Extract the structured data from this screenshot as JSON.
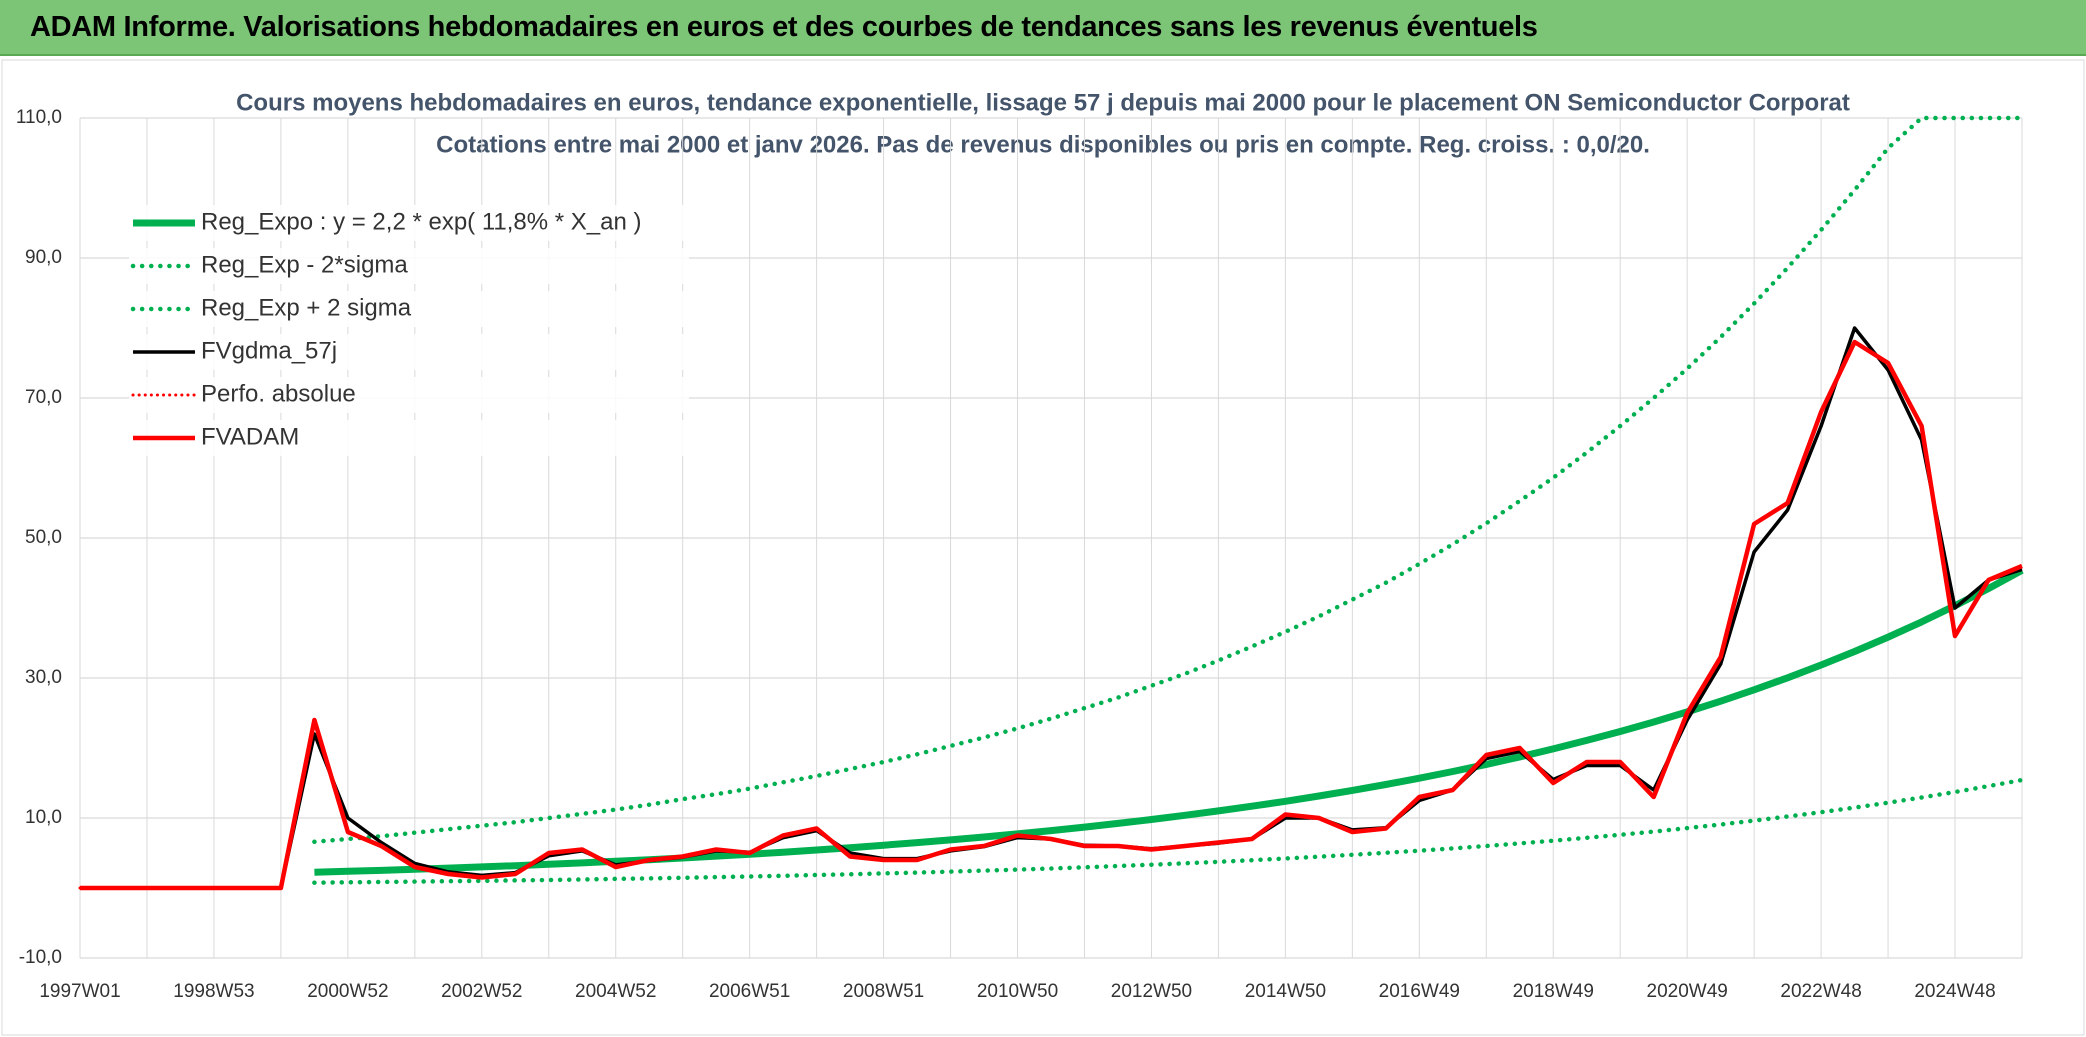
{
  "page_title": "ADAM Informe. Valorisations hebdomadaires en euros et des courbes de tendances sans les revenus éventuels",
  "chart_data": {
    "type": "line",
    "title": "Cours moyens hebdomadaires en euros, tendance exponentielle, lissage 57 j depuis mai 2000 pour le placement ON Semiconductor Corporat",
    "subtitle": "Cotations entre mai 2000 et janv 2026. Pas de revenus disponibles ou pris en compte. Reg. croiss. : 0,0/20.",
    "categories": [
      "1997W01",
      null,
      null,
      null,
      "1998W53",
      null,
      null,
      null,
      "2000W52",
      null,
      null,
      null,
      "2002W52",
      null,
      null,
      null,
      "2004W52",
      null,
      null,
      null,
      "2006W51",
      null,
      null,
      null,
      "2008W51",
      null,
      null,
      null,
      "2010W50",
      null,
      null,
      null,
      "2012W50",
      null,
      null,
      null,
      "2014W50",
      null,
      null,
      null,
      "2016W49",
      null,
      null,
      null,
      "2018W49",
      null,
      null,
      null,
      "2020W49",
      null,
      null,
      null,
      "2022W48",
      null,
      null,
      null,
      "2024W48",
      null,
      null
    ],
    "ylim": [
      -10,
      110
    ],
    "yticks": [
      {
        "value": -10,
        "label": "-10,0"
      },
      {
        "value": 10,
        "label": "10,0"
      },
      {
        "value": 30,
        "label": "30,0"
      },
      {
        "value": 50,
        "label": "50,0"
      },
      {
        "value": 70,
        "label": "70,0"
      },
      {
        "value": 90,
        "label": "90,0"
      },
      {
        "value": 110,
        "label": "110,0"
      }
    ],
    "grid": true,
    "legend": "upper left",
    "series": [
      {
        "name": "Reg_Expo : y = 2,2 * exp( 11,8% *  X_an )",
        "color": "#00b050",
        "style": "solid",
        "width": 7,
        "values": [
          null,
          null,
          null,
          null,
          null,
          null,
          null,
          2.24,
          2.38,
          2.52,
          2.67,
          2.84,
          3.01,
          3.19,
          3.38,
          3.59,
          3.81,
          4.04,
          4.29,
          4.55,
          4.82,
          5.12,
          5.43,
          5.76,
          6.11,
          6.48,
          6.87,
          7.29,
          7.73,
          8.2,
          8.7,
          9.23,
          9.79,
          10.38,
          11.01,
          11.68,
          12.39,
          13.15,
          13.95,
          14.79,
          15.69,
          16.65,
          17.66,
          18.73,
          19.87,
          21.08,
          22.36,
          23.72,
          25.16,
          26.69,
          28.31,
          30.03,
          31.86,
          33.79,
          35.84,
          38.02,
          40.33,
          42.79,
          45.39
        ]
      },
      {
        "name": "Reg_Exp - 2*sigma",
        "color": "#00b050",
        "style": "dotted",
        "width": 4.5,
        "values": [
          null,
          null,
          null,
          null,
          null,
          null,
          null,
          0.76,
          0.81,
          0.86,
          0.91,
          0.97,
          1.02,
          1.08,
          1.15,
          1.22,
          1.3,
          1.37,
          1.46,
          1.55,
          1.64,
          1.74,
          1.85,
          1.96,
          2.08,
          2.2,
          2.34,
          2.48,
          2.63,
          2.79,
          2.96,
          3.14,
          3.33,
          3.53,
          3.74,
          3.97,
          4.21,
          4.47,
          4.74,
          5.03,
          5.33,
          5.66,
          6.0,
          6.37,
          6.76,
          7.17,
          7.6,
          8.06,
          8.55,
          9.07,
          9.63,
          10.21,
          10.83,
          11.49,
          12.19,
          12.93,
          13.71,
          14.55,
          15.43
        ]
      },
      {
        "name": "Reg_Exp + 2 sigma",
        "color": "#00b050",
        "style": "dotted",
        "width": 4.5,
        "values": [
          null,
          null,
          null,
          null,
          null,
          null,
          null,
          6.6,
          7.0,
          7.4,
          7.9,
          8.4,
          8.9,
          9.4,
          10.0,
          10.6,
          11.2,
          11.9,
          12.7,
          13.4,
          14.2,
          15.1,
          16.0,
          17.0,
          18.0,
          19.1,
          20.3,
          21.5,
          22.8,
          24.2,
          25.7,
          27.2,
          28.9,
          30.6,
          32.5,
          34.5,
          36.6,
          38.8,
          41.2,
          43.6,
          46.3,
          49.1,
          52.1,
          55.3,
          58.6,
          62.2,
          66.0,
          70.0,
          74.2,
          78.7,
          83.5,
          88.6,
          94.0,
          99.7,
          105.7,
          110,
          110,
          110,
          110
        ]
      },
      {
        "name": "FVgdma_57j",
        "color": "#000000",
        "style": "solid",
        "width": 3.5,
        "values": [
          0,
          0,
          0,
          0,
          0,
          0,
          0,
          22,
          10,
          6.5,
          3.5,
          2.3,
          1.8,
          2.2,
          4.6,
          5.3,
          3.3,
          3.9,
          4.4,
          5.3,
          5.1,
          7.2,
          8.2,
          5,
          4.2,
          4.2,
          5.3,
          5.9,
          7.2,
          7,
          6.1,
          6,
          5.6,
          6,
          6.4,
          7,
          10,
          10,
          8.3,
          8.6,
          12.5,
          14,
          18.5,
          19.5,
          15.5,
          17.5,
          17.5,
          14,
          24,
          32,
          48,
          54,
          66,
          80,
          74,
          64,
          40,
          44,
          45.5
        ]
      },
      {
        "name": "Perfo. absolue",
        "color": "#ff0000",
        "style": "dotted",
        "width": 3,
        "values": [
          0,
          0,
          0,
          0,
          0,
          0,
          0,
          24,
          8,
          6,
          3,
          2,
          1.5,
          2,
          5,
          5.5,
          3,
          4,
          4.5,
          5.5,
          5,
          7.5,
          8.5,
          4.5,
          4,
          4,
          5.5,
          6,
          7.5,
          7,
          6,
          6,
          5.5,
          6,
          6.5,
          7,
          10.5,
          10,
          8,
          8.5,
          13,
          14,
          19,
          20,
          15,
          18,
          18,
          13,
          25,
          33,
          52,
          55,
          68,
          78,
          75,
          66,
          36,
          44,
          46
        ]
      },
      {
        "name": "FVADAM",
        "color": "#ff0000",
        "style": "solid",
        "width": 4.5,
        "values": [
          0,
          0,
          0,
          0,
          0,
          0,
          0,
          24,
          8,
          6,
          3,
          2,
          1.5,
          2,
          5,
          5.5,
          3,
          4,
          4.5,
          5.5,
          5,
          7.5,
          8.5,
          4.5,
          4,
          4,
          5.5,
          6,
          7.5,
          7,
          6,
          6,
          5.5,
          6,
          6.5,
          7,
          10.5,
          10,
          8,
          8.5,
          13,
          14,
          19,
          20,
          15,
          18,
          18,
          13,
          25,
          33,
          52,
          55,
          68,
          78,
          75,
          66,
          36,
          44,
          46
        ]
      }
    ]
  }
}
